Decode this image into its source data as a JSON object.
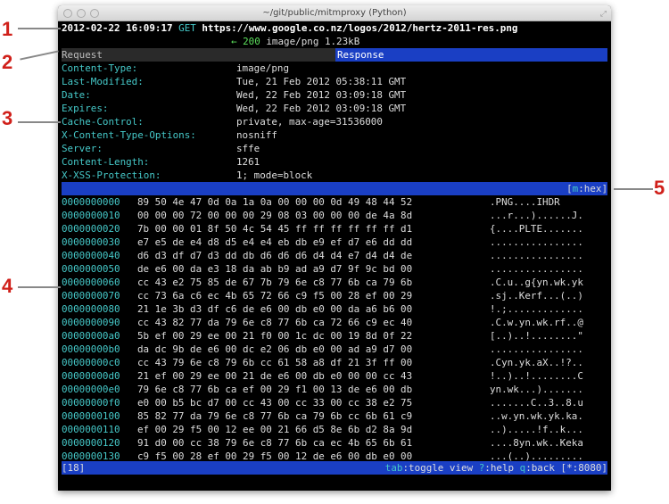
{
  "window": {
    "title": "~/git/public/mitmproxy (Python)"
  },
  "flow": {
    "timestamp": "2012-02-22 16:09:17",
    "method": "GET",
    "url": "https://www.google.co.nz/logos/2012/hertz-2011-res.png",
    "arrow": "←",
    "status": "200",
    "content_type": "image/png",
    "size": "1.23kB"
  },
  "tabs": {
    "request": "Request",
    "response": "Response"
  },
  "headers": [
    {
      "k": "Content-Type:",
      "v": "image/png"
    },
    {
      "k": "Last-Modified:",
      "v": "Tue, 21 Feb 2012 05:38:11 GMT"
    },
    {
      "k": "Date:",
      "v": "Wed, 22 Feb 2012 03:09:18 GMT"
    },
    {
      "k": "Expires:",
      "v": "Wed, 22 Feb 2012 03:09:18 GMT"
    },
    {
      "k": "Cache-Control:",
      "v": "private, max-age=31536000"
    },
    {
      "k": "X-Content-Type-Options:",
      "v": "nosniff"
    },
    {
      "k": "Server:",
      "v": "sffe"
    },
    {
      "k": "Content-Length:",
      "v": "1261"
    },
    {
      "k": "X-XSS-Protection:",
      "v": "1; mode=block"
    }
  ],
  "view_mode": {
    "key": "m",
    "label": "hex"
  },
  "hex": [
    {
      "a": "0000000000",
      "b": "89 50 4e 47 0d 0a 1a 0a 00 00 00 0d 49 48 44 52",
      "t": ".PNG....IHDR"
    },
    {
      "a": "0000000010",
      "b": "00 00 00 72 00 00 00 29 08 03 00 00 00 de 4a 8d",
      "t": "...r...)......J."
    },
    {
      "a": "0000000020",
      "b": "7b 00 00 01 8f 50 4c 54 45 ff ff ff ff ff ff d1",
      "t": "{....PLTE......."
    },
    {
      "a": "0000000030",
      "b": "e7 e5 de e4 d8 d5 e4 e4 eb db e9 ef d7 e6 dd dd",
      "t": "................"
    },
    {
      "a": "0000000040",
      "b": "d6 d3 df d7 d3 dd db d6 d6 d6 d4 d4 e7 d4 d4 de",
      "t": "................"
    },
    {
      "a": "0000000050",
      "b": "de e6 00 da e3 18 da ab b9 ad a9 d7 9f 9c bd 00",
      "t": "................"
    },
    {
      "a": "0000000060",
      "b": "cc 43 e2 75 85 de 67 7b 79 6e c8 77 6b ca 79 6b",
      "t": ".C.u..g{yn.wk.yk"
    },
    {
      "a": "0000000070",
      "b": "cc 73 6a c6 ec 4b 65 72 66 c9 f5 00 28 ef 00 29",
      "t": ".sj..Kerf...(..)"
    },
    {
      "a": "0000000080",
      "b": "21 1e 3b d3 df c6 de e6 00 db e0 00 da a6 b6 00",
      "t": "!.;............."
    },
    {
      "a": "0000000090",
      "b": "cc 43 82 77 da 79 6e c8 77 6b ca 72 66 c9 ec 40",
      "t": ".C.w.yn.wk.rf..@"
    },
    {
      "a": "00000000a0",
      "b": "5b ef 00 29 ee 00 21 f0 00 1c dc 00 19 8d 0f 22",
      "t": "[..)..!........\""
    },
    {
      "a": "00000000b0",
      "b": "da dc 9b de e6 00 dc e2 06 db e0 00 ad a9 d7 00",
      "t": "................"
    },
    {
      "a": "00000000c0",
      "b": "cc 43 79 6e c8 79 6b cc 61 58 a8 df 21 3f ff 00",
      "t": ".Cyn.yk.aX..!?.."
    },
    {
      "a": "00000000d0",
      "b": "21 ef 00 29 ee 00 21 de e6 00 db e0 00 00 cc 43",
      "t": "!..)..!........C"
    },
    {
      "a": "00000000e0",
      "b": "79 6e c8 77 6b ca ef 00 29 f1 00 13 de e6 00 db",
      "t": "yn.wk...)......."
    },
    {
      "a": "00000000f0",
      "b": "e0 00 b5 bc d7 00 cc 43 00 cc 33 00 cc 38 e2 75",
      "t": ".......C..3..8.u"
    },
    {
      "a": "0000000100",
      "b": "85 82 77 da 79 6e c8 77 6b ca 79 6b cc 6b 61 c9",
      "t": "..w.yn.wk.yk.ka."
    },
    {
      "a": "0000000110",
      "b": "ef 00 29 f5 00 12 ee 00 21 66 d5 8e 6b d2 8a 9d",
      "t": "..).....!f..k..."
    },
    {
      "a": "0000000120",
      "b": "91 d0 00 cc 38 79 6e c8 77 6b ca ec 4b 65 6b 61",
      "t": "....8yn.wk..Keka"
    },
    {
      "a": "0000000130",
      "b": "c9 f5 00 28 ef 00 29 f5 00 12 de e6 00 db e0 00",
      "t": "...(..)........."
    }
  ],
  "statusbar": {
    "count": "[18]",
    "keys": [
      {
        "k": "tab",
        "l": ":toggle view "
      },
      {
        "k": "?",
        "l": ":help "
      },
      {
        "k": "q",
        "l": ":back "
      }
    ],
    "port": "[*:8080]"
  },
  "annotations": [
    "1",
    "2",
    "3",
    "4",
    "5"
  ],
  "colors": {
    "accent_blue": "#1a3fc4",
    "key_cyan": "#45c8c8",
    "status_green": "#5de05d"
  }
}
